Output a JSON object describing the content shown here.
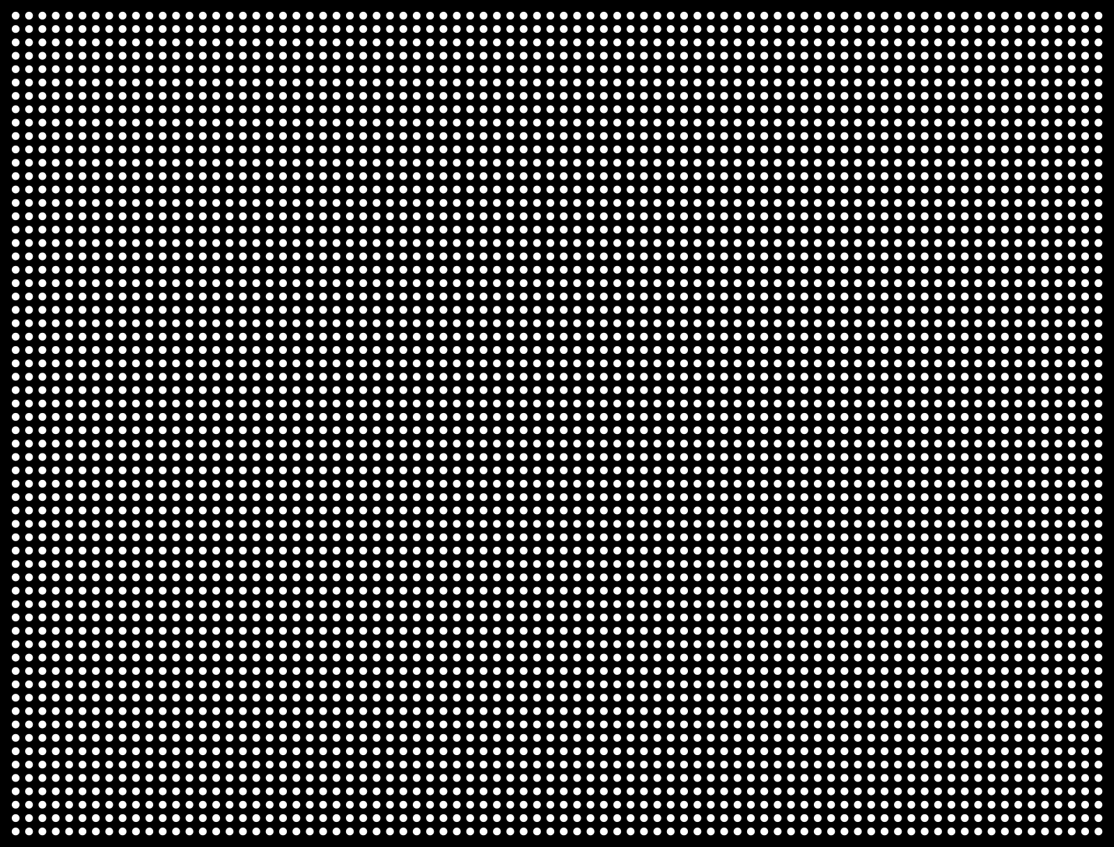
{
  "pattern": {
    "kind": "dot-grid",
    "background_color": "#000000",
    "dot_color": "#ffffff"
  }
}
